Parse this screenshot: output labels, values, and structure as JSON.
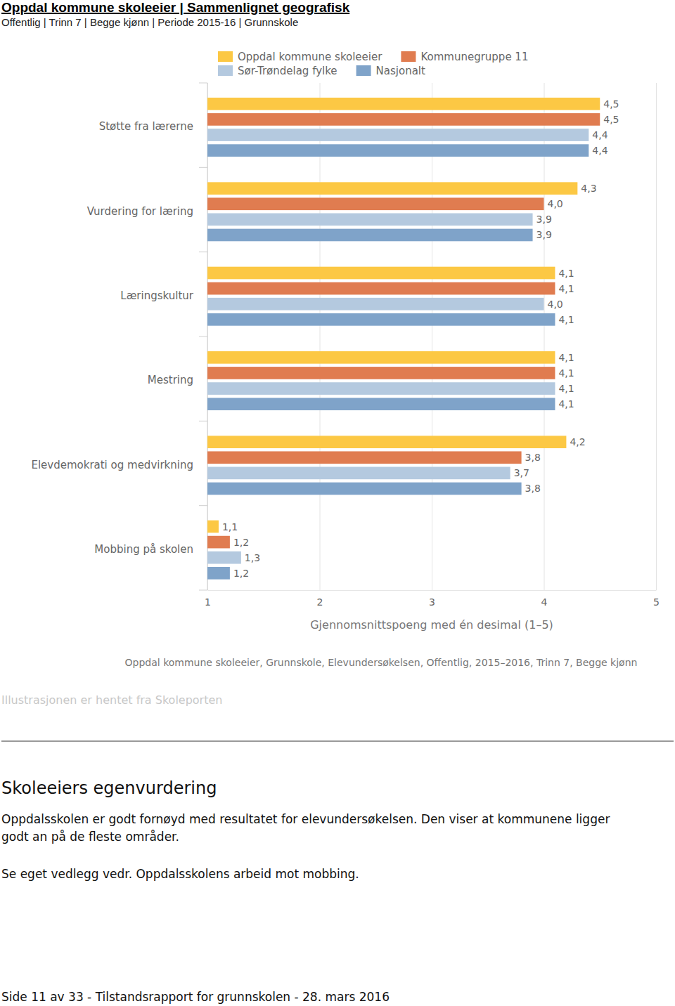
{
  "header": {
    "title": "Oppdal kommune skoleeier | Sammenlignet geografisk",
    "subtitle": "Offentlig | Trinn 7 | Begge kjønn | Periode 2015-16 | Grunnskole"
  },
  "chart_data": {
    "type": "bar",
    "orientation": "horizontal",
    "x_label": "Gjennomsnittspoeng med én desimal (1–5)",
    "annotations": [
      "Oppdal kommune skoleeier, Grunnskole, Elevundersøkelsen, Offentlig, 2015–2016, Trinn 7, Begge kjønn"
    ],
    "categories": [
      "Støtte fra lærerne",
      "Vurdering for læring",
      "Læringskultur",
      "Mestring",
      "Elevdemokrati og medvirkning",
      "Mobbing på skolen"
    ],
    "series": [
      {
        "name": "Oppdal kommune skoleeier",
        "color": "#fcc844",
        "values": [
          4.5,
          4.3,
          4.1,
          4.1,
          4.2,
          1.1
        ],
        "value_labels": [
          "4,5",
          "4,3",
          "4,1",
          "4,1",
          "4,2",
          "1,1"
        ]
      },
      {
        "name": "Kommunegruppe 11",
        "color": "#e07c50",
        "values": [
          4.5,
          4.0,
          4.1,
          4.1,
          3.8,
          1.2
        ],
        "value_labels": [
          "4,5",
          "4,0",
          "4,1",
          "4,1",
          "3,8",
          "1,2"
        ]
      },
      {
        "name": "Sør-Trøndelag fylke",
        "color": "#b4c9df",
        "values": [
          4.4,
          3.9,
          4.0,
          4.1,
          3.7,
          1.3
        ],
        "value_labels": [
          "4,4",
          "3,9",
          "4,0",
          "4,1",
          "3,7",
          "1,3"
        ]
      },
      {
        "name": "Nasjonalt",
        "color": "#7fa3c9",
        "values": [
          4.4,
          3.9,
          4.1,
          4.1,
          3.8,
          1.2
        ],
        "value_labels": [
          "4,4",
          "3,9",
          "4,1",
          "4,1",
          "3,8",
          "1,2"
        ]
      }
    ],
    "xlim": [
      1,
      5
    ],
    "xticks": [
      1,
      2,
      3,
      4,
      5
    ],
    "grid": true,
    "data_labels": true,
    "legend": "top"
  },
  "caption": "Illustrasjonen er hentet fra Skoleporten",
  "section": {
    "heading": "Skoleeiers egenvurdering",
    "paragraphs": [
      [
        "Oppdalsskolen er godt fornøyd med resultatet for elevundersøkelsen. Den viser at kommunene ligger",
        "godt an på de fleste områder."
      ],
      [
        "Se eget vedlegg vedr. Oppdalsskolens arbeid mot mobbing."
      ]
    ]
  },
  "footer": "Side 11 av 33 - Tilstandsrapport for grunnskolen - 28. mars 2016"
}
